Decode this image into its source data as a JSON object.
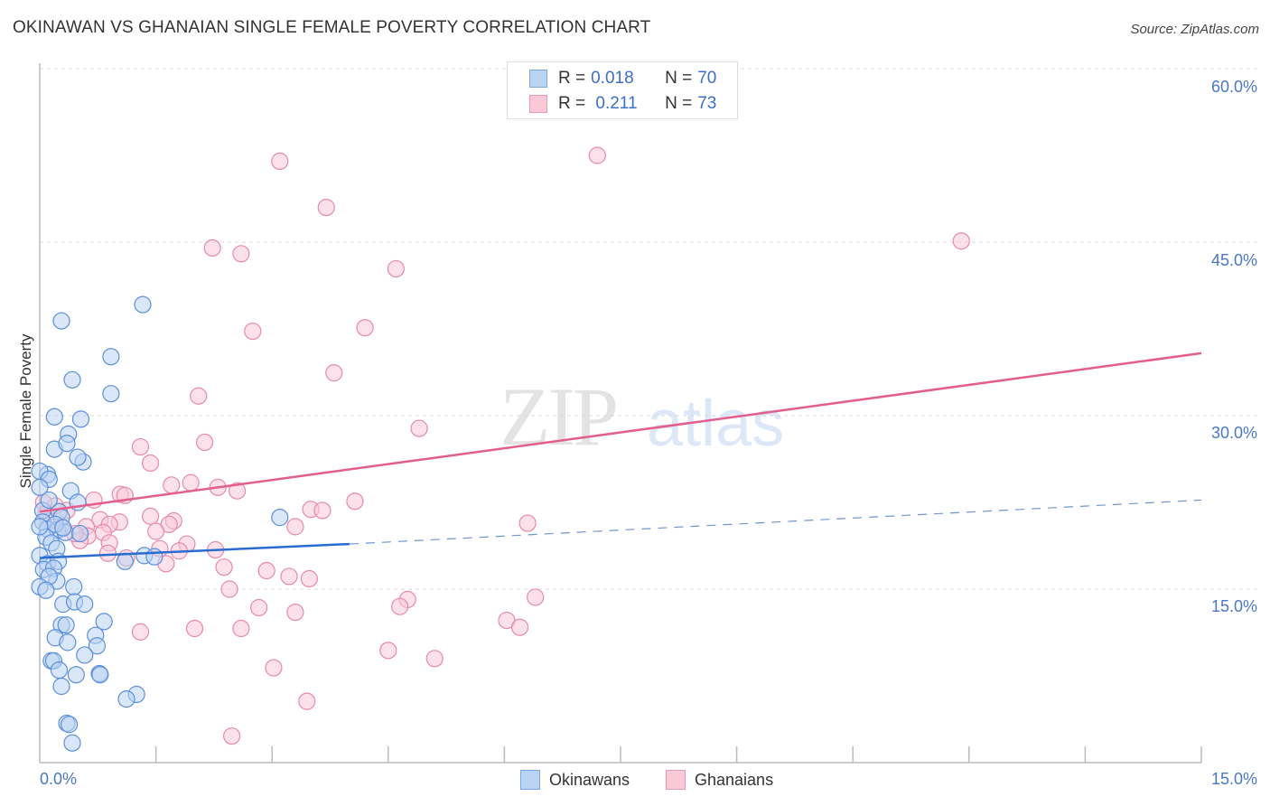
{
  "header": {
    "title": "OKINAWAN VS GHANAIAN SINGLE FEMALE POVERTY CORRELATION CHART",
    "source": "Source: ZipAtlas.com"
  },
  "watermark": {
    "zip": "ZIP",
    "atlas": "atlas"
  },
  "legend_top": {
    "rows": [
      {
        "r_label": "R = ",
        "r_value": "0.018",
        "n_label": "N = ",
        "n_value": "70"
      },
      {
        "r_label": "R = ",
        "r_value": " 0.211",
        "n_label": "N = ",
        "n_value": "73"
      }
    ]
  },
  "legend_bottom": {
    "items": [
      {
        "label": "Okinawans"
      },
      {
        "label": "Ghanaians"
      }
    ]
  },
  "axes": {
    "ylabel": "Single Female Poverty",
    "yticks": [
      "60.0%",
      "45.0%",
      "30.0%",
      "15.0%"
    ],
    "xticks": {
      "left": "0.0%",
      "right": "15.0%"
    }
  },
  "colors": {
    "okinawans_fill": "#b9d3f3",
    "okinawans_stroke": "#5b8fdc",
    "okinawans_line": "#2a6dd0",
    "ghanaians_fill": "#f9c9d8",
    "ghanaians_stroke": "#e88aa8",
    "ghanaians_line": "#e35e8e",
    "tick_text": "#4a78c8"
  },
  "chart_data": {
    "type": "scatter",
    "title": "OKINAWAN VS GHANAIAN SINGLE FEMALE POVERTY CORRELATION CHART",
    "xlabel": "",
    "ylabel": "Single Female Poverty",
    "xlim": [
      0,
      15
    ],
    "ylim": [
      0,
      62
    ],
    "x_unit": "%",
    "y_unit": "%",
    "grid": "horizontal dashed at 15, 30, 45, 60",
    "legend_position": "top-center (stats) and bottom-center (series)",
    "series": [
      {
        "name": "Okinawans",
        "R": 0.018,
        "N": 70,
        "trend": {
          "x": [
            0,
            4.0
          ],
          "y": [
            17.7,
            18.9
          ],
          "dashed_extension": {
            "x": [
              4.0,
              15
            ],
            "y": [
              18.9,
              22.7
            ]
          }
        },
        "points": [
          [
            0.28,
            38.2
          ],
          [
            1.33,
            39.6
          ],
          [
            0.92,
            35.1
          ],
          [
            0.42,
            33.1
          ],
          [
            0.92,
            31.9
          ],
          [
            0.19,
            29.9
          ],
          [
            0.53,
            29.7
          ],
          [
            0.37,
            28.4
          ],
          [
            0.19,
            27.1
          ],
          [
            0.35,
            27.6
          ],
          [
            0.56,
            26.0
          ],
          [
            0.49,
            26.4
          ],
          [
            0.1,
            24.9
          ],
          [
            0.0,
            25.2
          ],
          [
            0.12,
            24.5
          ],
          [
            0.0,
            23.8
          ],
          [
            0.4,
            23.5
          ],
          [
            0.49,
            22.5
          ],
          [
            0.04,
            21.8
          ],
          [
            0.25,
            21.7
          ],
          [
            0.28,
            21.2
          ],
          [
            0.04,
            20.8
          ],
          [
            0.1,
            20.2
          ],
          [
            0.23,
            20.1
          ],
          [
            0.33,
            19.9
          ],
          [
            0.08,
            19.5
          ],
          [
            0.15,
            19.0
          ],
          [
            0.22,
            18.5
          ],
          [
            0.0,
            17.9
          ],
          [
            0.1,
            17.2
          ],
          [
            0.24,
            17.4
          ],
          [
            0.05,
            16.7
          ],
          [
            0.18,
            16.8
          ],
          [
            0.22,
            15.7
          ],
          [
            0.12,
            16.1
          ],
          [
            0.0,
            15.2
          ],
          [
            0.08,
            14.9
          ],
          [
            0.44,
            15.2
          ],
          [
            0.3,
            13.7
          ],
          [
            0.45,
            13.9
          ],
          [
            0.58,
            13.7
          ],
          [
            0.83,
            12.2
          ],
          [
            0.28,
            11.9
          ],
          [
            0.34,
            11.9
          ],
          [
            0.2,
            10.8
          ],
          [
            0.72,
            11.0
          ],
          [
            0.36,
            10.4
          ],
          [
            0.74,
            10.1
          ],
          [
            0.58,
            9.3
          ],
          [
            0.15,
            8.8
          ],
          [
            0.18,
            8.8
          ],
          [
            0.25,
            8.0
          ],
          [
            0.47,
            7.6
          ],
          [
            0.77,
            7.7
          ],
          [
            0.78,
            7.6
          ],
          [
            0.28,
            6.6
          ],
          [
            1.25,
            5.9
          ],
          [
            1.12,
            5.5
          ],
          [
            0.35,
            3.4
          ],
          [
            0.38,
            3.3
          ],
          [
            0.42,
            1.7
          ],
          [
            3.1,
            21.2
          ],
          [
            1.35,
            17.9
          ],
          [
            1.48,
            17.8
          ],
          [
            1.1,
            17.4
          ],
          [
            0.12,
            22.7
          ],
          [
            0.2,
            20.6
          ],
          [
            0.0,
            20.4
          ],
          [
            0.3,
            20.3
          ],
          [
            0.52,
            19.8
          ]
        ]
      },
      {
        "name": "Ghanaians",
        "R": 0.211,
        "N": 73,
        "trend": {
          "x": [
            0,
            15
          ],
          "y": [
            21.7,
            35.4
          ]
        },
        "points": [
          [
            7.2,
            52.5
          ],
          [
            3.1,
            52.0
          ],
          [
            3.7,
            48.0
          ],
          [
            2.23,
            44.5
          ],
          [
            2.6,
            44.0
          ],
          [
            4.6,
            42.7
          ],
          [
            11.9,
            45.1
          ],
          [
            4.2,
            37.6
          ],
          [
            2.75,
            37.3
          ],
          [
            3.8,
            33.7
          ],
          [
            2.05,
            31.7
          ],
          [
            4.9,
            28.9
          ],
          [
            2.13,
            27.7
          ],
          [
            1.3,
            27.3
          ],
          [
            1.43,
            25.9
          ],
          [
            1.95,
            24.2
          ],
          [
            2.3,
            23.8
          ],
          [
            2.55,
            23.5
          ],
          [
            1.7,
            24.0
          ],
          [
            1.04,
            23.2
          ],
          [
            0.7,
            22.7
          ],
          [
            1.1,
            23.1
          ],
          [
            4.07,
            22.6
          ],
          [
            3.5,
            21.9
          ],
          [
            3.65,
            21.8
          ],
          [
            6.3,
            20.7
          ],
          [
            1.43,
            21.3
          ],
          [
            1.73,
            20.9
          ],
          [
            1.67,
            20.6
          ],
          [
            3.3,
            20.4
          ],
          [
            1.03,
            20.8
          ],
          [
            0.78,
            21.0
          ],
          [
            0.6,
            20.4
          ],
          [
            0.9,
            20.6
          ],
          [
            1.5,
            20.0
          ],
          [
            0.35,
            21.8
          ],
          [
            0.2,
            22.2
          ],
          [
            0.05,
            22.5
          ],
          [
            0.08,
            21.5
          ],
          [
            0.62,
            19.6
          ],
          [
            0.82,
            19.9
          ],
          [
            0.52,
            19.2
          ],
          [
            0.9,
            19.0
          ],
          [
            1.9,
            18.9
          ],
          [
            1.8,
            18.3
          ],
          [
            2.27,
            18.4
          ],
          [
            1.55,
            18.5
          ],
          [
            0.88,
            18.1
          ],
          [
            1.12,
            17.7
          ],
          [
            1.63,
            17.2
          ],
          [
            2.38,
            16.9
          ],
          [
            2.93,
            16.6
          ],
          [
            3.22,
            16.1
          ],
          [
            3.48,
            15.9
          ],
          [
            2.45,
            15.0
          ],
          [
            4.75,
            14.1
          ],
          [
            6.4,
            14.3
          ],
          [
            4.65,
            13.5
          ],
          [
            2.83,
            13.4
          ],
          [
            3.3,
            13.0
          ],
          [
            6.03,
            12.3
          ],
          [
            6.2,
            11.7
          ],
          [
            2.0,
            11.6
          ],
          [
            2.6,
            11.6
          ],
          [
            1.3,
            11.3
          ],
          [
            4.5,
            9.7
          ],
          [
            5.1,
            9.0
          ],
          [
            3.02,
            8.2
          ],
          [
            3.45,
            5.3
          ],
          [
            2.48,
            2.3
          ],
          [
            0.3,
            20.3
          ],
          [
            0.45,
            19.8
          ],
          [
            0.13,
            20.9
          ]
        ]
      }
    ]
  }
}
